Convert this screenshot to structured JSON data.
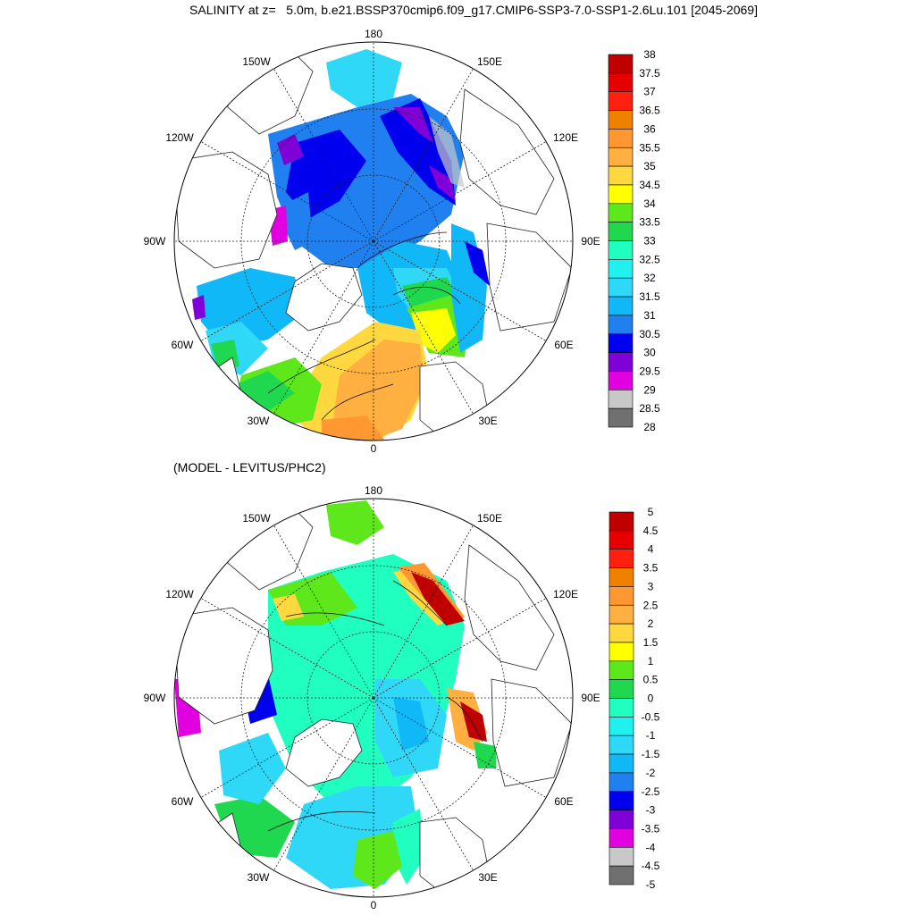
{
  "title": "SALINITY at z=   5.0m, b.e21.BSSP370cmip6.f09_g17.CMIP6-SSP3-7.0-SSP1-2.6Lu.101 [2045-2069]",
  "subtitle": "(MODEL - LEVITUS/PHC2)",
  "lon_labels": [
    "180",
    "150E",
    "120E",
    "90E",
    "60E",
    "30E",
    "0",
    "30W",
    "60W",
    "90W",
    "120W",
    "150W"
  ],
  "top_colorbar": {
    "labels": [
      "38",
      "37.5",
      "37",
      "36.5",
      "36",
      "35.5",
      "35",
      "34.5",
      "34",
      "33.5",
      "33",
      "32.5",
      "32",
      "31.5",
      "31",
      "30.5",
      "30",
      "29.5",
      "29",
      "28.5",
      "28"
    ],
    "colors": [
      "#c00000",
      "#e60000",
      "#ff2010",
      "#f08000",
      "#ff9830",
      "#ffb040",
      "#ffd840",
      "#ffff00",
      "#5ee81c",
      "#20d850",
      "#20ffc0",
      "#20f0f0",
      "#30d8f8",
      "#10b8f8",
      "#2080f0",
      "#0000ee",
      "#8000d8",
      "#e000e0",
      "#c8c8c8",
      "#707070"
    ]
  },
  "bottom_colorbar": {
    "labels": [
      "5",
      "4.5",
      "4",
      "3.5",
      "3",
      "2.5",
      "2",
      "1.5",
      "1",
      "0.5",
      "0",
      "-0.5",
      "-1",
      "-1.5",
      "-2",
      "-2.5",
      "-3",
      "-3.5",
      "-4",
      "-4.5",
      "-5"
    ],
    "colors": [
      "#c00000",
      "#e60000",
      "#ff2010",
      "#f08000",
      "#ff9830",
      "#ffb040",
      "#ffd840",
      "#ffff00",
      "#5ee81c",
      "#20d850",
      "#20ffc0",
      "#20f0f0",
      "#30d8f8",
      "#10b8f8",
      "#2080f0",
      "#0000ee",
      "#8000d8",
      "#e000e0",
      "#c8c8c8",
      "#707070"
    ]
  }
}
